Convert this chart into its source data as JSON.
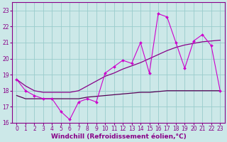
{
  "xlabel": "Windchill (Refroidissement éolien,°C)",
  "x": [
    0,
    1,
    2,
    3,
    4,
    5,
    6,
    7,
    8,
    9,
    10,
    11,
    12,
    13,
    14,
    15,
    16,
    17,
    18,
    19,
    20,
    21,
    22,
    23
  ],
  "line_temp": [
    18.7,
    18.0,
    17.7,
    17.5,
    17.5,
    16.7,
    16.2,
    17.3,
    17.5,
    17.3,
    19.1,
    19.5,
    19.9,
    19.7,
    21.0,
    19.1,
    22.8,
    22.6,
    21.0,
    19.4,
    21.1,
    21.5,
    20.8,
    18.0
  ],
  "line_trend": [
    18.7,
    18.3,
    18.0,
    17.9,
    17.9,
    17.9,
    17.9,
    18.0,
    18.3,
    18.6,
    18.9,
    19.1,
    19.35,
    19.55,
    19.75,
    20.0,
    20.25,
    20.5,
    20.7,
    20.85,
    20.95,
    21.05,
    21.1,
    21.15
  ],
  "line_flat": [
    17.7,
    17.5,
    17.5,
    17.5,
    17.5,
    17.5,
    17.5,
    17.5,
    17.6,
    17.65,
    17.7,
    17.75,
    17.8,
    17.85,
    17.9,
    17.9,
    17.95,
    18.0,
    18.0,
    18.0,
    18.0,
    18.0,
    18.0,
    18.0
  ],
  "color_temp": "#cc00cc",
  "color_trend": "#880088",
  "color_flat": "#550055",
  "bg_color": "#cce8e8",
  "grid_color": "#99cccc",
  "ylim_min": 16,
  "ylim_max": 23.5,
  "yticks": [
    16,
    17,
    18,
    19,
    20,
    21,
    22,
    23
  ],
  "xlim_min": -0.5,
  "xlim_max": 23.5,
  "tick_color": "#880088",
  "label_color": "#880088",
  "xlabel_fontsize": 6.5,
  "tick_fontsize": 5.5,
  "marker_size": 2.0
}
